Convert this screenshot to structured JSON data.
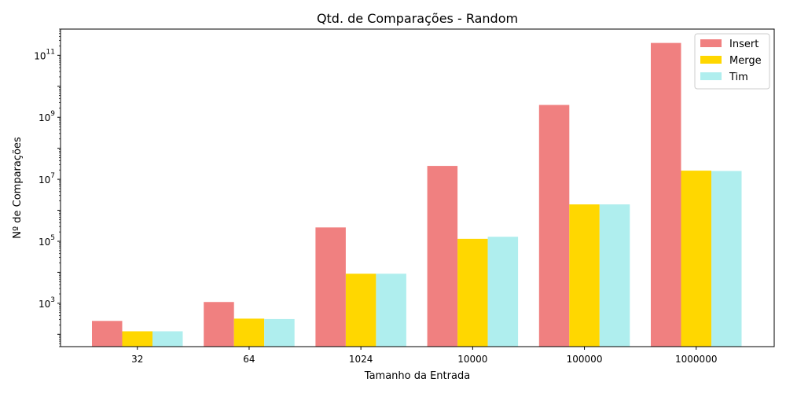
{
  "chart_data": {
    "type": "bar",
    "title": "Qtd. de Comparações - Random",
    "xlabel": "Tamanho da Entrada",
    "ylabel": "Nº de Comparações",
    "yscale": "log",
    "ylim": [
      40,
      700000000000
    ],
    "yticks": [
      {
        "value": 1000,
        "base": "10",
        "exp": "3"
      },
      {
        "value": 100000,
        "base": "10",
        "exp": "5"
      },
      {
        "value": 10000000,
        "base": "10",
        "exp": "7"
      },
      {
        "value": 1000000000,
        "base": "10",
        "exp": "9"
      },
      {
        "value": 100000000000,
        "base": "10",
        "exp": "11"
      }
    ],
    "grid": false,
    "legend_position": "top-right",
    "categories": [
      "32",
      "64",
      "1024",
      "10000",
      "100000",
      "1000000"
    ],
    "series": [
      {
        "name": "Insert",
        "color": "#f08080",
        "values": [
          270,
          1100,
          280000,
          27000000,
          2500000000,
          250000000000
        ]
      },
      {
        "name": "Merge",
        "color": "#ffd700",
        "values": [
          125,
          320,
          9000,
          120000,
          1550000,
          19000000
        ]
      },
      {
        "name": "Tim",
        "color": "#afeeee",
        "values": [
          125,
          310,
          9000,
          140000,
          1550000,
          18500000
        ]
      }
    ]
  }
}
